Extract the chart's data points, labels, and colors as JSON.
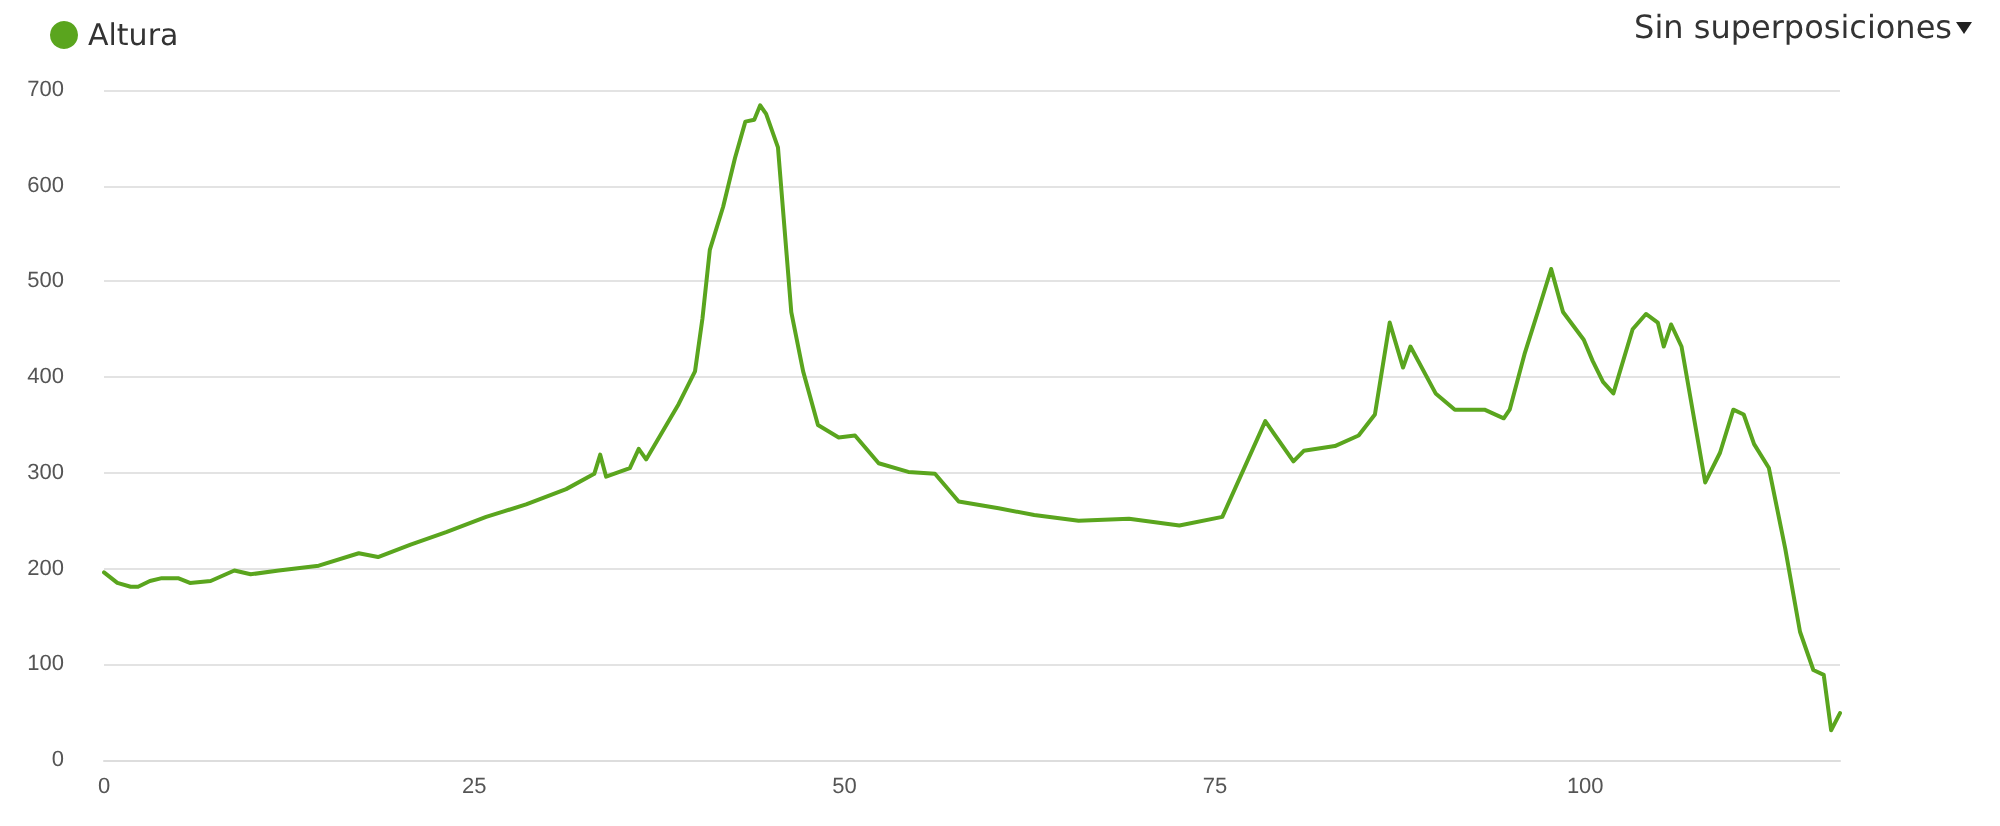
{
  "chart_data": {
    "type": "line",
    "annotations": [
      "Sin superposiciones"
    ],
    "xlim": [
      0,
      117.2
    ],
    "xticks": [
      0,
      25,
      50,
      75,
      100
    ],
    "ylim": [
      0,
      700
    ],
    "yticks": [
      0,
      100,
      200,
      300,
      400,
      500,
      600,
      700
    ],
    "grid": "y",
    "legend": "top left",
    "marker": "none",
    "line_style": "solid",
    "series": [
      {
        "name": "Altura",
        "color": "#5aa51e",
        "x": [
          0,
          0.9,
          1.8,
          2.3,
          3.1,
          3.9,
          5,
          5.8,
          7.2,
          8.8,
          9.9,
          11.8,
          14.5,
          17.2,
          18.5,
          20.7,
          23.1,
          25.8,
          28.5,
          31.2,
          33.1,
          33.5,
          33.9,
          35.5,
          36.1,
          36.6,
          38.8,
          39.9,
          40.4,
          40.9,
          41.8,
          42.6,
          43.3,
          43.9,
          44.3,
          44.7,
          45.5,
          46.4,
          47.2,
          48.2,
          49.6,
          50.7,
          52.3,
          54.3,
          56.1,
          57.7,
          60.4,
          62.8,
          65.8,
          69.2,
          72.6,
          75.5,
          78.4,
          80.3,
          81,
          83.1,
          84.7,
          85.8,
          86.8,
          87.7,
          88.2,
          89.9,
          91.2,
          93.2,
          94.5,
          94.9,
          95.9,
          96.9,
          97.7,
          98.5,
          99.9,
          100.5,
          101.2,
          101.9,
          103.2,
          104.1,
          104.9,
          105.3,
          105.8,
          106.5,
          108.1,
          109.1,
          110,
          110.7,
          111.4,
          112.4,
          113.5,
          114.5,
          115.4,
          116.1,
          116.6,
          117.2
        ],
        "values": [
          196,
          185,
          181,
          181,
          187,
          190,
          190,
          185,
          187,
          198,
          194,
          198,
          203,
          216,
          212,
          225,
          238,
          254,
          267,
          283,
          299,
          319,
          296,
          305,
          325,
          314,
          372,
          406,
          461,
          533,
          578,
          629,
          667,
          669,
          684,
          675,
          640,
          468,
          406,
          350,
          337,
          339,
          310,
          301,
          299,
          270,
          263,
          256,
          250,
          252,
          245,
          254,
          354,
          312,
          323,
          328,
          339,
          361,
          457,
          410,
          432,
          383,
          366,
          366,
          357,
          366,
          424,
          473,
          513,
          468,
          439,
          417,
          395,
          383,
          450,
          466,
          457,
          432,
          455,
          432,
          290,
          321,
          366,
          361,
          330,
          305,
          221,
          134,
          94,
          89,
          31,
          49
        ]
      }
    ]
  }
}
